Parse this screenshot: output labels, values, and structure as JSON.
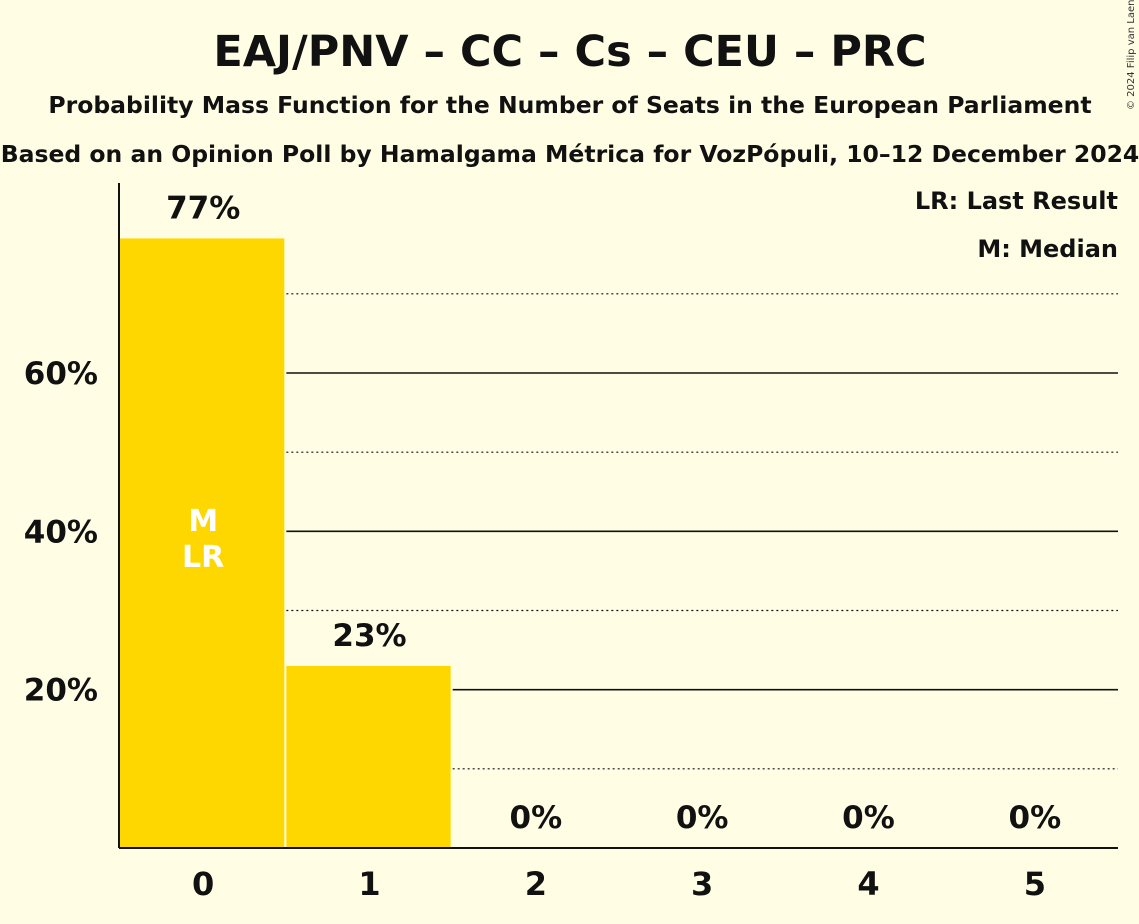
{
  "chart_data": {
    "type": "bar",
    "title": "EAJ/PNV – CC – Cs – CEU – PRC",
    "subtitle": "Probability Mass Function for the Number of Seats in the European Parliament",
    "subtitle2": "Based on an Opinion Poll by Hamalgama Métrica for VozPópuli, 10–12 December 2024",
    "copyright": "© 2024 Filip van Laenen",
    "categories": [
      "0",
      "1",
      "2",
      "3",
      "4",
      "5"
    ],
    "values": [
      77,
      23,
      0,
      0,
      0,
      0
    ],
    "data_labels": [
      "77%",
      "23%",
      "0%",
      "0%",
      "0%",
      "0%"
    ],
    "ylim": [
      0,
      84
    ],
    "y_ticks": [
      20,
      40,
      60
    ],
    "y_tick_labels": [
      "20%",
      "40%",
      "60%"
    ],
    "minor_gridlines": [
      10,
      30,
      50,
      70
    ],
    "bar_color": "#FFD700",
    "median_index": 0,
    "last_result_index": 0,
    "median_marker": "M",
    "last_result_marker": "LR",
    "legend": [
      "LR: Last Result",
      "M: Median"
    ],
    "legend_position": "top-right",
    "grid": true
  }
}
